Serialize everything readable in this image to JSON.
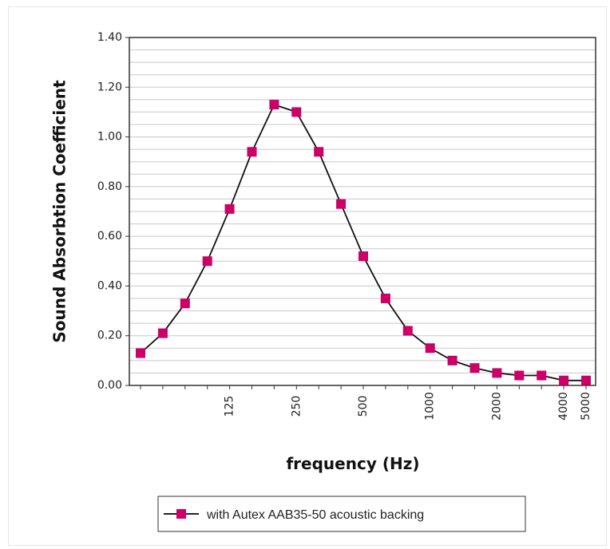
{
  "chart_data": {
    "type": "line",
    "title": "",
    "xlabel": "frequency (Hz)",
    "ylabel": "Sound Absorbtion Coefficient",
    "ylim": [
      0,
      1.4
    ],
    "yticks": [
      "0.00",
      "0.20",
      "0.40",
      "0.60",
      "0.80",
      "1.00",
      "1.20",
      "1.40"
    ],
    "x": [
      50,
      63,
      80,
      100,
      125,
      160,
      200,
      250,
      315,
      400,
      500,
      630,
      800,
      1000,
      1250,
      1600,
      2000,
      2500,
      3150,
      4000,
      5000
    ],
    "xtick_labels": [
      "125",
      "250",
      "500",
      "1000",
      "2000",
      "4000",
      "5000"
    ],
    "grid": true,
    "legend_position": "bottom",
    "series": [
      {
        "name": "with Autex AAB35-50 acoustic backing",
        "color": "#cc0066",
        "values": [
          0.13,
          0.21,
          0.33,
          0.5,
          0.71,
          0.94,
          1.13,
          1.1,
          0.94,
          0.73,
          0.52,
          0.35,
          0.22,
          0.15,
          0.1,
          0.07,
          0.05,
          0.04,
          0.04,
          0.02,
          0.02
        ]
      }
    ]
  }
}
